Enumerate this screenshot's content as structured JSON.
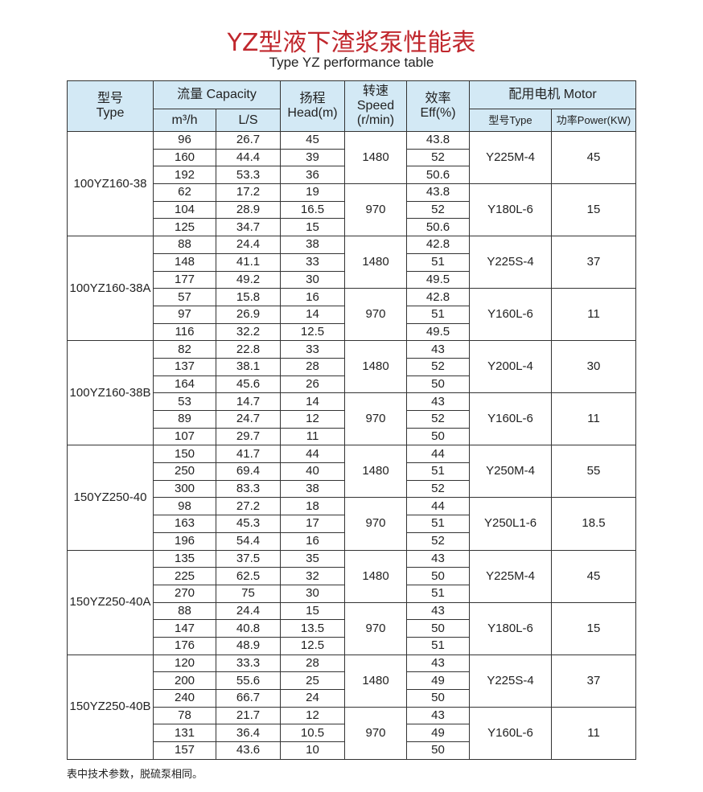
{
  "title": "YZ型液下渣浆泵性能表",
  "subtitle": "Type YZ performance table",
  "headers": {
    "type": "型号\nType",
    "capacity": "流量 Capacity",
    "m3h": "m³/h",
    "ls": "L/S",
    "head": "扬程\nHead(m)",
    "speed": "转速\nSpeed\n(r/min)",
    "eff": "效率\nEff(%)",
    "motor": "配用电机 Motor",
    "motor_type": "型号Type",
    "power": "功率Power(KW)"
  },
  "models": [
    {
      "type": "100YZ160-38",
      "groups": [
        {
          "speed": "1480",
          "motor": "Y225M-4",
          "power": "45",
          "rows": [
            [
              "96",
              "26.7",
              "45",
              "43.8"
            ],
            [
              "160",
              "44.4",
              "39",
              "52"
            ],
            [
              "192",
              "53.3",
              "36",
              "50.6"
            ]
          ]
        },
        {
          "speed": "970",
          "motor": "Y180L-6",
          "power": "15",
          "rows": [
            [
              "62",
              "17.2",
              "19",
              "43.8"
            ],
            [
              "104",
              "28.9",
              "16.5",
              "52"
            ],
            [
              "125",
              "34.7",
              "15",
              "50.6"
            ]
          ]
        }
      ]
    },
    {
      "type": "100YZ160-38A",
      "groups": [
        {
          "speed": "1480",
          "motor": "Y225S-4",
          "power": "37",
          "rows": [
            [
              "88",
              "24.4",
              "38",
              "42.8"
            ],
            [
              "148",
              "41.1",
              "33",
              "51"
            ],
            [
              "177",
              "49.2",
              "30",
              "49.5"
            ]
          ]
        },
        {
          "speed": "970",
          "motor": "Y160L-6",
          "power": "11",
          "rows": [
            [
              "57",
              "15.8",
              "16",
              "42.8"
            ],
            [
              "97",
              "26.9",
              "14",
              "51"
            ],
            [
              "116",
              "32.2",
              "12.5",
              "49.5"
            ]
          ]
        }
      ]
    },
    {
      "type": "100YZ160-38B",
      "groups": [
        {
          "speed": "1480",
          "motor": "Y200L-4",
          "power": "30",
          "rows": [
            [
              "82",
              "22.8",
              "33",
              "43"
            ],
            [
              "137",
              "38.1",
              "28",
              "52"
            ],
            [
              "164",
              "45.6",
              "26",
              "50"
            ]
          ]
        },
        {
          "speed": "970",
          "motor": "Y160L-6",
          "power": "11",
          "rows": [
            [
              "53",
              "14.7",
              "14",
              "43"
            ],
            [
              "89",
              "24.7",
              "12",
              "52"
            ],
            [
              "107",
              "29.7",
              "11",
              "50"
            ]
          ]
        }
      ]
    },
    {
      "type": "150YZ250-40",
      "groups": [
        {
          "speed": "1480",
          "motor": "Y250M-4",
          "power": "55",
          "rows": [
            [
              "150",
              "41.7",
              "44",
              "44"
            ],
            [
              "250",
              "69.4",
              "40",
              "51"
            ],
            [
              "300",
              "83.3",
              "38",
              "52"
            ]
          ]
        },
        {
          "speed": "970",
          "motor": "Y250L1-6",
          "power": "18.5",
          "rows": [
            [
              "98",
              "27.2",
              "18",
              "44"
            ],
            [
              "163",
              "45.3",
              "17",
              "51"
            ],
            [
              "196",
              "54.4",
              "16",
              "52"
            ]
          ]
        }
      ]
    },
    {
      "type": "150YZ250-40A",
      "groups": [
        {
          "speed": "1480",
          "motor": "Y225M-4",
          "power": "45",
          "rows": [
            [
              "135",
              "37.5",
              "35",
              "43"
            ],
            [
              "225",
              "62.5",
              "32",
              "50"
            ],
            [
              "270",
              "75",
              "30",
              "51"
            ]
          ]
        },
        {
          "speed": "970",
          "motor": "Y180L-6",
          "power": "15",
          "rows": [
            [
              "88",
              "24.4",
              "15",
              "43"
            ],
            [
              "147",
              "40.8",
              "13.5",
              "50"
            ],
            [
              "176",
              "48.9",
              "12.5",
              "51"
            ]
          ]
        }
      ]
    },
    {
      "type": "150YZ250-40B",
      "groups": [
        {
          "speed": "1480",
          "motor": "Y225S-4",
          "power": "37",
          "rows": [
            [
              "120",
              "33.3",
              "28",
              "43"
            ],
            [
              "200",
              "55.6",
              "25",
              "49"
            ],
            [
              "240",
              "66.7",
              "24",
              "50"
            ]
          ]
        },
        {
          "speed": "970",
          "motor": "Y160L-6",
          "power": "11",
          "rows": [
            [
              "78",
              "21.7",
              "12",
              "43"
            ],
            [
              "131",
              "36.4",
              "10.5",
              "49"
            ],
            [
              "157",
              "43.6",
              "10",
              "50"
            ]
          ]
        }
      ]
    }
  ],
  "note": "表中技术参数，脱硫泵相同。",
  "colors": {
    "title": "#c0272d",
    "header_bg": "#d3e9f5"
  }
}
